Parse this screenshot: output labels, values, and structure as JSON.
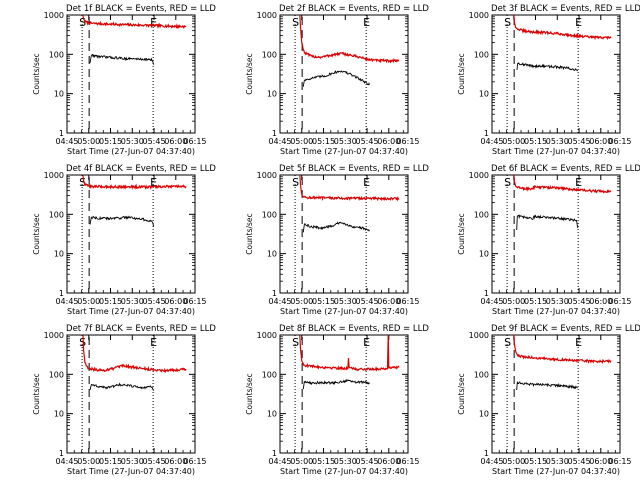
{
  "figure": {
    "xlabel": "Start Time (27-Jun-07 04:37:40)",
    "ylabel": "Counts/sec",
    "x_tick_labels": [
      "04:45",
      "05:00",
      "05:15",
      "05:30",
      "05:45",
      "06:00",
      "06:15"
    ],
    "y_tick_labels": [
      "1",
      "10",
      "100",
      "1000"
    ],
    "marker_start_label": "S",
    "marker_end_label": "E",
    "colors": {
      "events": "#000000",
      "lld": "#dd0000",
      "axis": "#000000"
    }
  },
  "chart_data": [
    {
      "type": "line",
      "title": "Det 1f BLACK = Events, RED = LLD",
      "xlabel": "Start Time (27-Jun-07 04:37:40)",
      "ylabel": "Counts/sec",
      "x_unit": "minutes after 04:37:40",
      "xlim": [
        0,
        100
      ],
      "ylim": [
        1,
        1000
      ],
      "yscale": "log",
      "start_marker": 11.8,
      "end_marker": 67.3,
      "dashed_marker": 17.3,
      "series": [
        {
          "color": "red",
          "x": [
            12.3,
            13,
            14,
            16,
            20,
            30,
            40,
            50,
            60,
            67,
            75,
            85,
            93
          ],
          "y": [
            1000,
            800,
            680,
            640,
            610,
            590,
            575,
            560,
            550,
            540,
            530,
            515,
            505
          ]
        },
        {
          "color": "black",
          "x": [
            18,
            19,
            25,
            35,
            45,
            55,
            62,
            66,
            68
          ],
          "y": [
            60,
            95,
            88,
            83,
            78,
            76,
            75,
            72,
            55
          ]
        }
      ]
    },
    {
      "type": "line",
      "title": "Det 2f BLACK = Events, RED = LLD",
      "xlabel": "Start Time (27-Jun-07 04:37:40)",
      "ylabel": "Counts/sec",
      "x_unit": "minutes after 04:37:40",
      "xlim": [
        0,
        100
      ],
      "ylim": [
        1,
        1000
      ],
      "yscale": "log",
      "start_marker": 11.8,
      "end_marker": 67.3,
      "dashed_marker": 17.3,
      "series": [
        {
          "color": "red",
          "x": [
            15.5,
            16,
            17,
            19,
            25,
            32,
            40,
            48,
            55,
            62,
            68,
            75,
            85,
            93
          ],
          "y": [
            1000,
            500,
            200,
            110,
            88,
            85,
            95,
            105,
            95,
            85,
            75,
            70,
            68,
            70
          ]
        },
        {
          "color": "black",
          "x": [
            18.2,
            19,
            23,
            28,
            35,
            42,
            48,
            54,
            60,
            66,
            70
          ],
          "y": [
            15,
            22,
            24,
            26,
            28,
            34,
            38,
            32,
            26,
            20,
            17
          ]
        }
      ]
    },
    {
      "type": "line",
      "title": "Det 3f BLACK = Events, RED = LLD",
      "xlabel": "Start Time (27-Jun-07 04:37:40)",
      "ylabel": "Counts/sec",
      "x_unit": "minutes after 04:37:40",
      "xlim": [
        0,
        100
      ],
      "ylim": [
        1,
        1000
      ],
      "yscale": "log",
      "start_marker": 11.8,
      "end_marker": 67.3,
      "dashed_marker": 17.3,
      "series": [
        {
          "color": "red",
          "x": [
            17,
            17.5,
            18.5,
            20,
            25,
            32,
            40,
            50,
            60,
            70,
            80,
            93
          ],
          "y": [
            1000,
            650,
            480,
            440,
            390,
            370,
            360,
            340,
            310,
            285,
            270,
            265
          ]
        },
        {
          "color": "black",
          "x": [
            19.5,
            20,
            25,
            32,
            40,
            50,
            58,
            63,
            66,
            67
          ],
          "y": [
            40,
            60,
            55,
            50,
            50,
            48,
            45,
            42,
            40,
            38
          ]
        }
      ]
    },
    {
      "type": "line",
      "title": "Det 4f BLACK = Events, RED = LLD",
      "xlabel": "Start Time (27-Jun-07 04:37:40)",
      "ylabel": "Counts/sec",
      "x_unit": "minutes after 04:37:40",
      "xlim": [
        0,
        100
      ],
      "ylim": [
        1,
        1000
      ],
      "yscale": "log",
      "start_marker": 11.8,
      "end_marker": 67.3,
      "dashed_marker": 17.3,
      "series": [
        {
          "color": "red",
          "x": [
            12.5,
            13,
            14,
            16,
            20,
            30,
            40,
            50,
            60,
            70,
            80,
            93
          ],
          "y": [
            1000,
            700,
            580,
            530,
            510,
            505,
            500,
            500,
            495,
            500,
            505,
            510
          ]
        },
        {
          "color": "black",
          "x": [
            18,
            19,
            25,
            33,
            40,
            48,
            55,
            62,
            66,
            68
          ],
          "y": [
            55,
            85,
            80,
            78,
            80,
            85,
            78,
            72,
            65,
            50
          ]
        }
      ]
    },
    {
      "type": "line",
      "title": "Det 5f BLACK = Events, RED = LLD",
      "xlabel": "Start Time (27-Jun-07 04:37:40)",
      "ylabel": "Counts/sec",
      "x_unit": "minutes after 04:37:40",
      "xlim": [
        0,
        100
      ],
      "ylim": [
        1,
        1000
      ],
      "yscale": "log",
      "start_marker": 11.8,
      "end_marker": 67.3,
      "dashed_marker": 17.3,
      "series": [
        {
          "color": "red",
          "x": [
            15.5,
            16,
            17,
            19,
            25,
            35,
            45,
            55,
            65,
            75,
            85,
            93
          ],
          "y": [
            1000,
            550,
            320,
            270,
            265,
            260,
            258,
            255,
            255,
            252,
            250,
            250
          ]
        },
        {
          "color": "black",
          "x": [
            18.2,
            19,
            25,
            33,
            40,
            46,
            52,
            58,
            64,
            70
          ],
          "y": [
            35,
            55,
            48,
            45,
            50,
            60,
            55,
            48,
            45,
            40
          ]
        }
      ]
    },
    {
      "type": "line",
      "title": "Det 6f BLACK = Events, RED = LLD",
      "xlabel": "Start Time (27-Jun-07 04:37:40)",
      "ylabel": "Counts/sec",
      "x_unit": "minutes after 04:37:40",
      "xlim": [
        0,
        100
      ],
      "ylim": [
        1,
        1000
      ],
      "yscale": "log",
      "start_marker": 11.8,
      "end_marker": 67.3,
      "dashed_marker": 17.3,
      "series": [
        {
          "color": "red",
          "x": [
            17,
            17.5,
            18.5,
            20,
            26,
            32,
            32.5,
            40,
            50,
            60,
            70,
            80,
            93
          ],
          "y": [
            1000,
            700,
            520,
            480,
            450,
            440,
            500,
            490,
            470,
            440,
            410,
            390,
            380
          ]
        },
        {
          "color": "black",
          "x": [
            19.3,
            19.8,
            25,
            32,
            32.5,
            40,
            50,
            58,
            63,
            66,
            67
          ],
          "y": [
            40,
            90,
            85,
            75,
            88,
            85,
            80,
            75,
            72,
            70,
            45
          ]
        }
      ]
    },
    {
      "type": "line",
      "title": "Det 7f BLACK = Events, RED = LLD",
      "xlabel": "Start Time (27-Jun-07 04:37:40)",
      "ylabel": "Counts/sec",
      "x_unit": "minutes after 04:37:40",
      "xlim": [
        0,
        100
      ],
      "ylim": [
        1,
        1000
      ],
      "yscale": "log",
      "start_marker": 11.8,
      "end_marker": 67.3,
      "dashed_marker": 17.3,
      "series": [
        {
          "color": "red",
          "x": [
            12.5,
            13,
            14,
            16,
            20,
            28,
            36,
            44,
            52,
            60,
            68,
            76,
            84,
            93
          ],
          "y": [
            1000,
            400,
            200,
            150,
            135,
            125,
            140,
            165,
            150,
            140,
            130,
            125,
            130,
            135
          ]
        },
        {
          "color": "black",
          "x": [
            18,
            19,
            24,
            30,
            36,
            42,
            48,
            54,
            60,
            66,
            68
          ],
          "y": [
            40,
            55,
            50,
            45,
            50,
            55,
            52,
            48,
            45,
            48,
            40
          ]
        }
      ]
    },
    {
      "type": "line",
      "title": "Det 8f BLACK = Events, RED = LLD",
      "xlabel": "Start Time (27-Jun-07 04:37:40)",
      "ylabel": "Counts/sec",
      "x_unit": "minutes after 04:37:40",
      "xlim": [
        0,
        100
      ],
      "ylim": [
        1,
        1000
      ],
      "yscale": "log",
      "start_marker": 11.8,
      "end_marker": 67.3,
      "dashed_marker": 17.3,
      "series": [
        {
          "color": "red",
          "x": [
            15.5,
            16,
            17,
            19,
            25,
            35,
            45,
            53,
            53.5,
            54,
            60,
            70,
            80,
            84,
            84.5,
            85,
            93
          ],
          "y": [
            1000,
            450,
            220,
            170,
            160,
            150,
            145,
            140,
            260,
            145,
            135,
            135,
            140,
            140,
            1000,
            150,
            150
          ]
        },
        {
          "color": "black",
          "x": [
            18.2,
            19,
            25,
            32,
            40,
            48,
            54,
            60,
            66,
            70
          ],
          "y": [
            42,
            65,
            60,
            62,
            60,
            65,
            70,
            62,
            65,
            58
          ]
        }
      ]
    },
    {
      "type": "line",
      "title": "Det 9f BLACK = Events, RED = LLD",
      "xlabel": "Start Time (27-Jun-07 04:37:40)",
      "ylabel": "Counts/sec",
      "x_unit": "minutes after 04:37:40",
      "xlim": [
        0,
        100
      ],
      "ylim": [
        1,
        1000
      ],
      "yscale": "log",
      "start_marker": 11.8,
      "end_marker": 67.3,
      "dashed_marker": 17.3,
      "series": [
        {
          "color": "red",
          "x": [
            17,
            17.5,
            18.5,
            20,
            25,
            32,
            40,
            50,
            60,
            70,
            80,
            93
          ],
          "y": [
            1000,
            600,
            380,
            300,
            275,
            265,
            250,
            240,
            230,
            220,
            215,
            215
          ]
        },
        {
          "color": "black",
          "x": [
            19.3,
            19.8,
            25,
            32,
            40,
            50,
            58,
            63,
            66,
            67
          ],
          "y": [
            40,
            62,
            58,
            55,
            55,
            52,
            50,
            48,
            47,
            45
          ]
        }
      ]
    }
  ]
}
